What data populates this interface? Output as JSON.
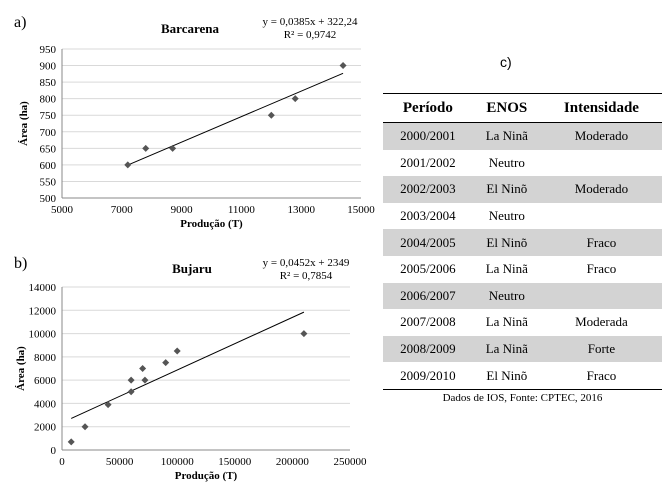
{
  "panel_labels": {
    "a": "a)",
    "b": "b)",
    "c": "c)"
  },
  "chart_data": [
    {
      "type": "scatter",
      "title": "Barcarena",
      "xlabel": "Produção  (T)",
      "ylabel": "Área (ha)",
      "xlim": [
        5000,
        15000
      ],
      "ylim": [
        500,
        950
      ],
      "xticks": [
        5000,
        7000,
        9000,
        11000,
        13000,
        15000
      ],
      "yticks": [
        500,
        550,
        600,
        650,
        700,
        750,
        800,
        850,
        900,
        950
      ],
      "grid": "horizontal",
      "points": [
        {
          "x": 7200,
          "y": 600
        },
        {
          "x": 7800,
          "y": 650
        },
        {
          "x": 8700,
          "y": 650
        },
        {
          "x": 12000,
          "y": 750
        },
        {
          "x": 12800,
          "y": 800
        },
        {
          "x": 14400,
          "y": 900
        }
      ],
      "trendline": {
        "slope": 0.0385,
        "intercept": 322.24,
        "x_range": [
          7200,
          14400
        ]
      },
      "equation": "y = 0,0385x + 322,24",
      "r2": "R² = 0,9742"
    },
    {
      "type": "scatter",
      "title": "Bujaru",
      "xlabel": "Produção  (T)",
      "ylabel": "Área (ha)",
      "xlim": [
        0,
        250000
      ],
      "ylim": [
        0,
        14000
      ],
      "xticks": [
        0,
        50000,
        100000,
        150000,
        200000,
        250000
      ],
      "yticks": [
        0,
        2000,
        4000,
        6000,
        8000,
        10000,
        12000,
        14000
      ],
      "grid": "horizontal",
      "points": [
        {
          "x": 8000,
          "y": 700
        },
        {
          "x": 20000,
          "y": 2000
        },
        {
          "x": 40000,
          "y": 3900
        },
        {
          "x": 60000,
          "y": 5000
        },
        {
          "x": 60000,
          "y": 6000
        },
        {
          "x": 70000,
          "y": 7000
        },
        {
          "x": 72000,
          "y": 6000
        },
        {
          "x": 90000,
          "y": 7500
        },
        {
          "x": 100000,
          "y": 8500
        },
        {
          "x": 210000,
          "y": 10000
        }
      ],
      "trendline": {
        "slope": 0.0452,
        "intercept": 2349,
        "x_range": [
          8000,
          210000
        ]
      },
      "equation": "y = 0,0452x + 2349",
      "r2": "R² = 0,7854"
    }
  ],
  "table": {
    "headers": [
      "Período",
      "ENOS",
      "Intensidade"
    ],
    "rows": [
      [
        "2000/2001",
        "La Ninã",
        "Moderado"
      ],
      [
        "2001/2002",
        "Neutro",
        ""
      ],
      [
        "2002/2003",
        "El Ninõ",
        "Moderado"
      ],
      [
        "2003/2004",
        "Neutro",
        ""
      ],
      [
        "2004/2005",
        "El Ninõ",
        "Fraco"
      ],
      [
        "2005/2006",
        "La Ninã",
        "Fraco"
      ],
      [
        "2006/2007",
        "Neutro",
        ""
      ],
      [
        "2007/2008",
        "La Ninã",
        "Moderada"
      ],
      [
        "2008/2009",
        "La Ninã",
        "Forte"
      ],
      [
        "2009/2010",
        "El Ninõ",
        "Fraco"
      ]
    ],
    "source": "Dados de IOS, Fonte:  CPTEC, 2016"
  },
  "colors": {
    "marker": "#555555",
    "grid": "#d9d9d9",
    "shade": "#d3d3d3"
  }
}
